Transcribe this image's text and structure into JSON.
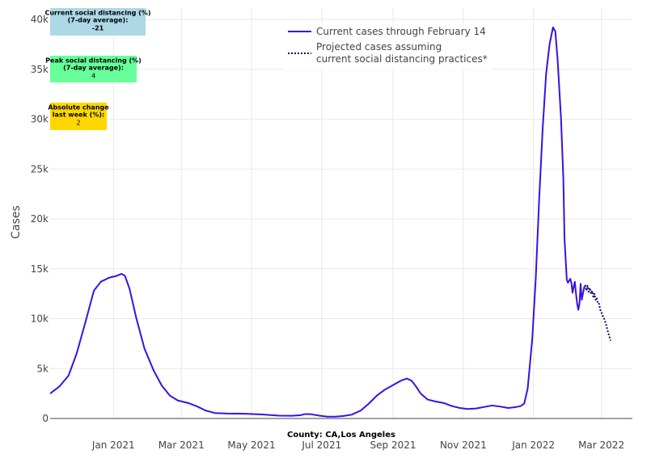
{
  "chart_data": {
    "type": "line",
    "title": "",
    "xlabel": "County: CA,Los Angeles",
    "ylabel": "Cases",
    "x_range": [
      "2020-11-07",
      "2022-03-28"
    ],
    "ylim": [
      0,
      40000
    ],
    "y_ticks": [
      {
        "value": 0,
        "label": "0"
      },
      {
        "value": 5000,
        "label": "5k"
      },
      {
        "value": 10000,
        "label": "10k"
      },
      {
        "value": 15000,
        "label": "15k"
      },
      {
        "value": 20000,
        "label": "20k"
      },
      {
        "value": 25000,
        "label": "25k"
      },
      {
        "value": 30000,
        "label": "30k"
      },
      {
        "value": 35000,
        "label": "35k"
      },
      {
        "value": 40000,
        "label": "40k"
      }
    ],
    "x_ticks": [
      {
        "date": "2021-01-01",
        "label": "Jan 2021"
      },
      {
        "date": "2021-03-01",
        "label": "Mar 2021"
      },
      {
        "date": "2021-05-01",
        "label": "May 2021"
      },
      {
        "date": "2021-07-01",
        "label": "Jul 2021"
      },
      {
        "date": "2021-09-01",
        "label": "Sep 2021"
      },
      {
        "date": "2021-11-01",
        "label": "Nov 2021"
      },
      {
        "date": "2022-01-01",
        "label": "Jan 2022"
      },
      {
        "date": "2022-03-01",
        "label": "Mar 2022"
      }
    ],
    "grid": true,
    "legend_position": "top-center",
    "series": [
      {
        "name": "Current cases through February 14",
        "color": "#3a10e5",
        "dash": "solid",
        "points": [
          [
            "2020-11-07",
            2500
          ],
          [
            "2020-11-15",
            3200
          ],
          [
            "2020-11-23",
            4300
          ],
          [
            "2020-11-30",
            6500
          ],
          [
            "2020-12-08",
            9800
          ],
          [
            "2020-12-15",
            12800
          ],
          [
            "2020-12-21",
            13700
          ],
          [
            "2020-12-28",
            14100
          ],
          [
            "2021-01-04",
            14300
          ],
          [
            "2021-01-08",
            14500
          ],
          [
            "2021-01-11",
            14300
          ],
          [
            "2021-01-15",
            13000
          ],
          [
            "2021-01-21",
            10000
          ],
          [
            "2021-01-28",
            7000
          ],
          [
            "2021-02-05",
            4800
          ],
          [
            "2021-02-12",
            3300
          ],
          [
            "2021-02-19",
            2300
          ],
          [
            "2021-02-26",
            1800
          ],
          [
            "2021-03-07",
            1550
          ],
          [
            "2021-03-15",
            1200
          ],
          [
            "2021-03-22",
            800
          ],
          [
            "2021-03-30",
            550
          ],
          [
            "2021-04-10",
            500
          ],
          [
            "2021-04-25",
            480
          ],
          [
            "2021-05-10",
            400
          ],
          [
            "2021-05-25",
            280
          ],
          [
            "2021-06-05",
            270
          ],
          [
            "2021-06-12",
            320
          ],
          [
            "2021-06-17",
            450
          ],
          [
            "2021-06-22",
            420
          ],
          [
            "2021-06-29",
            280
          ],
          [
            "2021-07-06",
            180
          ],
          [
            "2021-07-13",
            180
          ],
          [
            "2021-07-20",
            250
          ],
          [
            "2021-07-27",
            380
          ],
          [
            "2021-08-04",
            800
          ],
          [
            "2021-08-11",
            1500
          ],
          [
            "2021-08-18",
            2300
          ],
          [
            "2021-08-25",
            2900
          ],
          [
            "2021-09-01",
            3350
          ],
          [
            "2021-09-08",
            3800
          ],
          [
            "2021-09-13",
            4000
          ],
          [
            "2021-09-17",
            3800
          ],
          [
            "2021-09-21",
            3200
          ],
          [
            "2021-09-25",
            2500
          ],
          [
            "2021-10-01",
            1900
          ],
          [
            "2021-10-08",
            1700
          ],
          [
            "2021-10-15",
            1550
          ],
          [
            "2021-10-22",
            1250
          ],
          [
            "2021-10-29",
            1050
          ],
          [
            "2021-11-05",
            950
          ],
          [
            "2021-11-12",
            1000
          ],
          [
            "2021-11-19",
            1150
          ],
          [
            "2021-11-26",
            1300
          ],
          [
            "2021-12-03",
            1200
          ],
          [
            "2021-12-10",
            1050
          ],
          [
            "2021-12-17",
            1150
          ],
          [
            "2021-12-21",
            1250
          ],
          [
            "2021-12-24",
            1500
          ],
          [
            "2021-12-27",
            3000
          ],
          [
            "2021-12-31",
            8000
          ],
          [
            "2022-01-03",
            14000
          ],
          [
            "2022-01-06",
            22000
          ],
          [
            "2022-01-09",
            29000
          ],
          [
            "2022-01-12",
            34500
          ],
          [
            "2022-01-15",
            37500
          ],
          [
            "2022-01-18",
            39200
          ],
          [
            "2022-01-20",
            38800
          ],
          [
            "2022-01-22",
            36000
          ],
          [
            "2022-01-25",
            30000
          ],
          [
            "2022-01-27",
            24000
          ],
          [
            "2022-01-28",
            18000
          ],
          [
            "2022-01-30",
            13900
          ],
          [
            "2022-01-31",
            13600
          ],
          [
            "2022-02-02",
            14000
          ],
          [
            "2022-02-03",
            13600
          ],
          [
            "2022-02-04",
            12600
          ],
          [
            "2022-02-05",
            13200
          ],
          [
            "2022-02-06",
            13700
          ],
          [
            "2022-02-07",
            12500
          ],
          [
            "2022-02-08",
            11500
          ],
          [
            "2022-02-09",
            10900
          ],
          [
            "2022-02-10",
            11500
          ],
          [
            "2022-02-11",
            13500
          ],
          [
            "2022-02-12",
            11900
          ],
          [
            "2022-02-13",
            12500
          ],
          [
            "2022-02-14",
            13100
          ]
        ]
      },
      {
        "name": "Projected cases assuming current social distancing practices*",
        "color": "#14006e",
        "dash": "dot",
        "points": [
          [
            "2022-02-14",
            13100
          ],
          [
            "2022-02-15",
            13400
          ],
          [
            "2022-02-16",
            12800
          ],
          [
            "2022-02-17",
            13300
          ],
          [
            "2022-02-18",
            12700
          ],
          [
            "2022-02-19",
            13100
          ],
          [
            "2022-02-20",
            12500
          ],
          [
            "2022-02-21",
            12800
          ],
          [
            "2022-02-22",
            12200
          ],
          [
            "2022-02-23",
            12500
          ],
          [
            "2022-02-24",
            11900
          ],
          [
            "2022-02-25",
            12100
          ],
          [
            "2022-02-26",
            11500
          ],
          [
            "2022-02-27",
            11500
          ],
          [
            "2022-02-28",
            10900
          ],
          [
            "2022-03-01",
            10700
          ],
          [
            "2022-03-02",
            10300
          ],
          [
            "2022-03-03",
            10200
          ],
          [
            "2022-03-04",
            9800
          ],
          [
            "2022-03-05",
            9500
          ],
          [
            "2022-03-06",
            9000
          ],
          [
            "2022-03-07",
            8600
          ],
          [
            "2022-03-08",
            8200
          ],
          [
            "2022-03-09",
            7800
          ]
        ]
      }
    ],
    "annotations": [
      {
        "lines": [
          "Current social distancing (%)",
          "(7-day average):"
        ],
        "value": "-21",
        "bg": "#add8e6"
      },
      {
        "lines": [
          "Peak social distancing (%)",
          "(7-day average):"
        ],
        "value": "4",
        "bg": "#66ff99"
      },
      {
        "lines": [
          "Absolute change",
          "last week (%):"
        ],
        "value": "2",
        "bg": "#ffd700"
      }
    ],
    "legend": [
      {
        "lines": [
          "Current cases through February 14"
        ],
        "color": "#3a10e5",
        "dash": "solid"
      },
      {
        "lines": [
          "Projected cases assuming",
          "current social distancing practices*"
        ],
        "color": "#14006e",
        "dash": "dot"
      }
    ]
  }
}
